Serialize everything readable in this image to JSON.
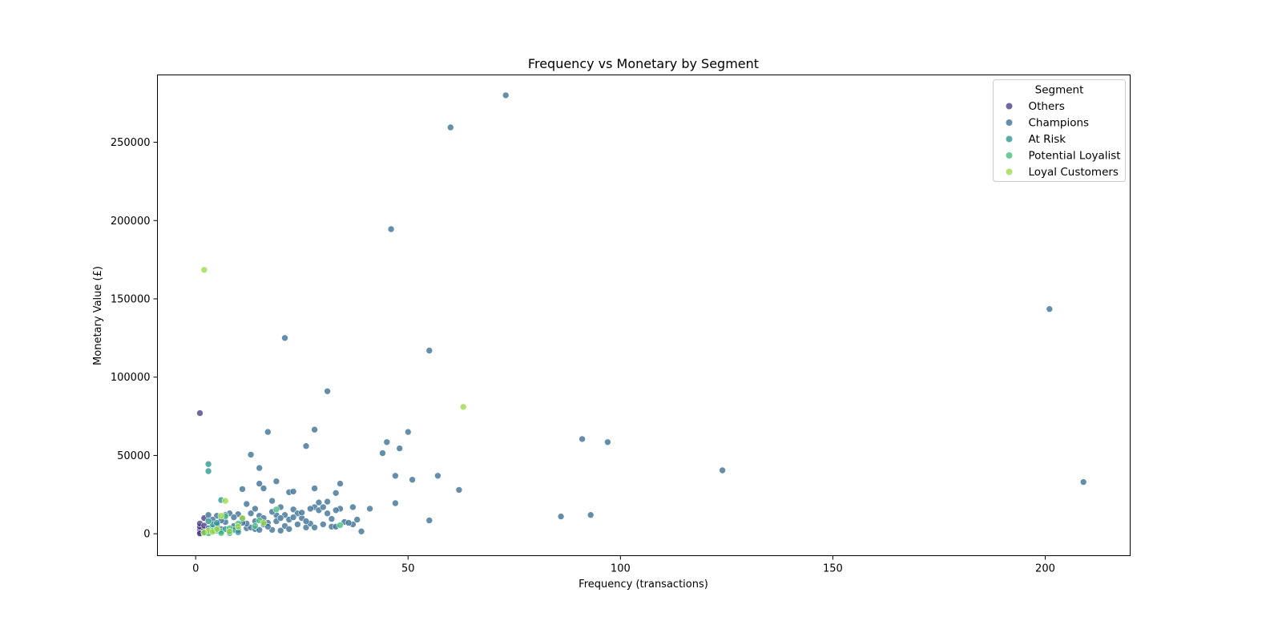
{
  "chart_data": {
    "type": "scatter",
    "title": "Frequency vs Monetary by Segment",
    "xlabel": "Frequency (transactions)",
    "ylabel": "Monetary Value (£)",
    "xlim": [
      -9,
      220
    ],
    "ylim": [
      -14000,
      293000
    ],
    "x_ticks": [
      0,
      50,
      100,
      150,
      200
    ],
    "y_ticks": [
      0,
      50000,
      100000,
      150000,
      200000,
      250000
    ],
    "grid": false,
    "legend": {
      "title": "Segment",
      "placement": "top-right",
      "entries": [
        "Others",
        "Champions",
        "At Risk",
        "Potential Loyalist",
        "Loyal Customers"
      ]
    },
    "series": [
      {
        "name": "Others",
        "color": "#46337e",
        "points": [
          [
            1,
            77000
          ],
          [
            1,
            500
          ],
          [
            1,
            1500
          ],
          [
            1,
            3000
          ],
          [
            1,
            4500
          ],
          [
            1,
            6500
          ],
          [
            2,
            1000
          ],
          [
            2,
            2500
          ],
          [
            2,
            10000
          ],
          [
            1,
            200
          ],
          [
            2,
            5200
          ]
        ]
      },
      {
        "name": "Champions",
        "color": "#31688e",
        "points": [
          [
            73,
            280000
          ],
          [
            60,
            259500
          ],
          [
            46,
            194500
          ],
          [
            21,
            125000
          ],
          [
            55,
            117000
          ],
          [
            31,
            91000
          ],
          [
            201,
            143500
          ],
          [
            28,
            66500
          ],
          [
            17,
            65000
          ],
          [
            50,
            65000
          ],
          [
            45,
            58500
          ],
          [
            48,
            54500
          ],
          [
            26,
            56000
          ],
          [
            44,
            51500
          ],
          [
            13,
            50500
          ],
          [
            91,
            60500
          ],
          [
            97,
            58500
          ],
          [
            124,
            40500
          ],
          [
            209,
            33000
          ],
          [
            47,
            37000
          ],
          [
            57,
            37000
          ],
          [
            51,
            34500
          ],
          [
            19,
            33500
          ],
          [
            15,
            32000
          ],
          [
            34,
            32000
          ],
          [
            16,
            29000
          ],
          [
            11,
            28500
          ],
          [
            28,
            29000
          ],
          [
            62,
            28000
          ],
          [
            33,
            26000
          ],
          [
            22,
            26500
          ],
          [
            23,
            27000
          ],
          [
            15,
            42000
          ],
          [
            29,
            20000
          ],
          [
            31,
            20500
          ],
          [
            47,
            19500
          ],
          [
            18,
            21000
          ],
          [
            12,
            19000
          ],
          [
            41,
            16000
          ],
          [
            34,
            16000
          ],
          [
            37,
            17000
          ],
          [
            28,
            17000
          ],
          [
            27,
            16000
          ],
          [
            23,
            15500
          ],
          [
            20,
            17000
          ],
          [
            14,
            16000
          ],
          [
            86,
            11000
          ],
          [
            93,
            12000
          ],
          [
            55,
            8500
          ],
          [
            39,
            1500
          ],
          [
            32,
            4500
          ],
          [
            37,
            6000
          ],
          [
            25,
            10000
          ],
          [
            19,
            12000
          ],
          [
            10,
            12500
          ],
          [
            5,
            11500
          ],
          [
            3,
            12000
          ],
          [
            8,
            13000
          ],
          [
            22,
            9000
          ],
          [
            16,
            6000
          ],
          [
            12,
            3500
          ],
          [
            9,
            5000
          ],
          [
            14,
            8000
          ],
          [
            21,
            5000
          ],
          [
            26,
            4000
          ],
          [
            30,
            6000
          ],
          [
            6,
            3000
          ],
          [
            18,
            2500
          ],
          [
            24,
            13000
          ],
          [
            33,
            15000
          ],
          [
            15,
            11500
          ],
          [
            11,
            9500
          ],
          [
            17,
            7000
          ],
          [
            7,
            7500
          ],
          [
            13,
            4000
          ],
          [
            20,
            2000
          ],
          [
            29,
            15000
          ],
          [
            35,
            7500
          ],
          [
            38,
            9000
          ],
          [
            31,
            13000
          ],
          [
            27,
            6500
          ],
          [
            23,
            10500
          ],
          [
            19,
            8000
          ],
          [
            4,
            9000
          ],
          [
            5,
            5500
          ],
          [
            6,
            8500
          ],
          [
            10,
            2500
          ],
          [
            16,
            10000
          ],
          [
            22,
            3000
          ],
          [
            25,
            13500
          ],
          [
            12,
            6500
          ],
          [
            18,
            14000
          ],
          [
            30,
            17000
          ],
          [
            36,
            7000
          ],
          [
            3,
            3500
          ],
          [
            8,
            1500
          ],
          [
            14,
            3000
          ],
          [
            21,
            12000
          ],
          [
            26,
            8000
          ],
          [
            32,
            9500
          ],
          [
            9,
            10500
          ],
          [
            28,
            4000
          ],
          [
            20,
            10000
          ],
          [
            15,
            2500
          ],
          [
            11,
            7000
          ],
          [
            17,
            4500
          ],
          [
            24,
            6000
          ],
          [
            33,
            4500
          ],
          [
            7,
            12000
          ],
          [
            13,
            13000
          ]
        ]
      },
      {
        "name": "At Risk",
        "color": "#21918c",
        "points": [
          [
            3,
            44500
          ],
          [
            3,
            40000
          ],
          [
            6,
            21500
          ],
          [
            4,
            3500
          ],
          [
            5,
            2000
          ],
          [
            3,
            1000
          ],
          [
            2,
            500
          ],
          [
            4,
            6000
          ],
          [
            6,
            1500
          ],
          [
            7,
            3000
          ],
          [
            5,
            7000
          ],
          [
            8,
            500
          ],
          [
            3,
            8000
          ],
          [
            9,
            2500
          ],
          [
            10,
            1000
          ]
        ]
      },
      {
        "name": "Potential Loyalist",
        "color": "#3bbb75",
        "points": [
          [
            34,
            5500
          ],
          [
            19,
            15500
          ],
          [
            14,
            5000
          ],
          [
            8,
            3500
          ],
          [
            4,
            2000
          ],
          [
            6,
            500
          ],
          [
            10,
            6500
          ],
          [
            3,
            300
          ],
          [
            15,
            8500
          ],
          [
            7,
            11000
          ]
        ]
      },
      {
        "name": "Loyal Customers",
        "color": "#95d840",
        "points": [
          [
            2,
            168500
          ],
          [
            63,
            81000
          ],
          [
            7,
            21000
          ],
          [
            11,
            10000
          ],
          [
            8,
            1500
          ],
          [
            6,
            11500
          ],
          [
            3,
            2000
          ],
          [
            2,
            800
          ],
          [
            4,
            1200
          ],
          [
            16,
            7000
          ],
          [
            5,
            3000
          ],
          [
            10,
            4500
          ]
        ]
      }
    ]
  }
}
